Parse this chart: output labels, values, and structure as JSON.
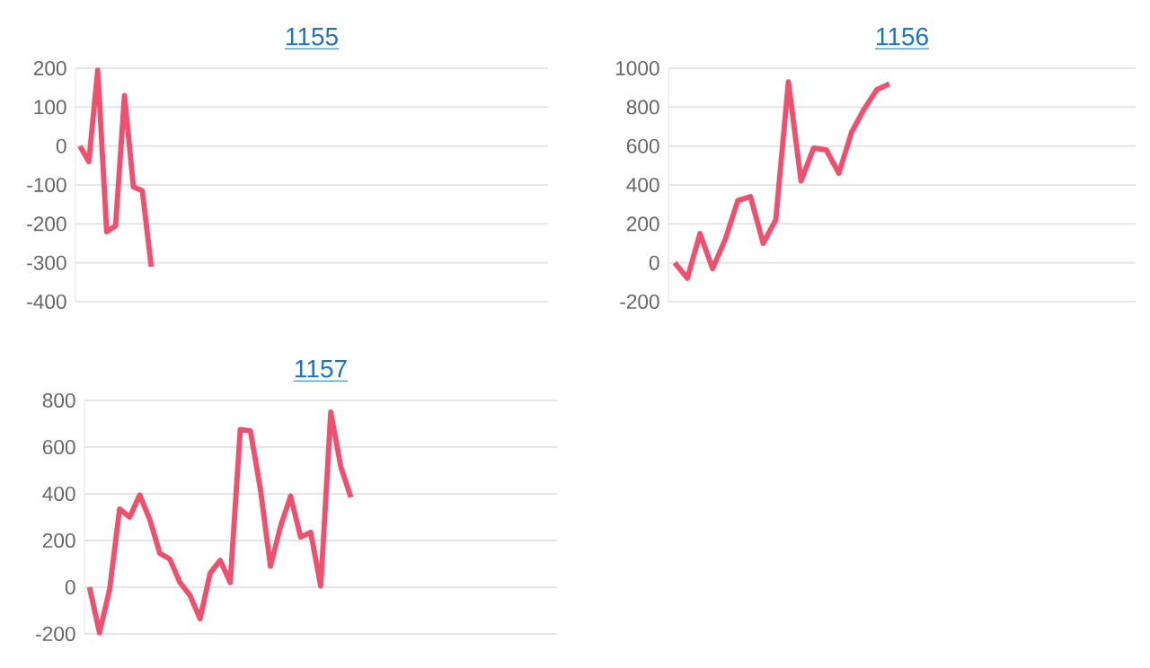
{
  "chart_data": [
    {
      "type": "line",
      "title": "1155",
      "color": "#f0506e",
      "grid": "y",
      "tick_labels": "y",
      "ylim": [
        -400,
        200
      ],
      "yticks": [
        -400,
        -300,
        -200,
        -100,
        0,
        100,
        200
      ],
      "categories": [
        null,
        null,
        null,
        null,
        null,
        null,
        null,
        null,
        null,
        null,
        null,
        null,
        null,
        null,
        null,
        null,
        null,
        null,
        null,
        null,
        null,
        null,
        null,
        null,
        null,
        null,
        null,
        null,
        null,
        null,
        null,
        null,
        null,
        null,
        null,
        null,
        null,
        null,
        null,
        null,
        null,
        null,
        null,
        null,
        null,
        null,
        null,
        null,
        null,
        null,
        null,
        null,
        null
      ],
      "values": [
        0,
        -40,
        195,
        -220,
        -205,
        130,
        -105,
        -115,
        -310,
        null,
        null,
        null,
        null,
        null,
        null,
        null,
        null,
        null,
        null,
        null,
        null,
        null,
        null,
        null,
        null,
        null,
        null,
        null,
        null,
        null,
        null,
        null,
        null,
        null,
        null,
        null,
        null,
        null,
        null,
        null,
        null,
        null,
        null,
        null,
        null,
        null,
        null,
        null,
        null,
        null,
        null,
        null,
        null
      ]
    },
    {
      "type": "line",
      "title": "1156",
      "color": "#f0506e",
      "grid": "y",
      "tick_labels": "y",
      "ylim": [
        -200,
        1000
      ],
      "yticks": [
        -200,
        0,
        200,
        400,
        600,
        800,
        1000
      ],
      "categories": [
        null,
        null,
        null,
        null,
        null,
        null,
        null,
        null,
        null,
        null,
        null,
        null,
        null,
        null,
        null,
        null,
        null,
        null,
        null,
        null,
        null,
        null,
        null,
        null,
        null,
        null,
        null,
        null,
        null,
        null,
        null,
        null,
        null,
        null,
        null,
        null,
        null
      ],
      "values": [
        0,
        -80,
        150,
        -30,
        120,
        320,
        340,
        100,
        220,
        930,
        420,
        590,
        580,
        460,
        670,
        790,
        890,
        920,
        null,
        null,
        null,
        null,
        null,
        null,
        null,
        null,
        null,
        null,
        null,
        null,
        null,
        null,
        null,
        null,
        null,
        null,
        null
      ]
    },
    {
      "type": "line",
      "title": "1157",
      "color": "#f0506e",
      "grid": "y",
      "tick_labels": "y",
      "ylim": [
        -200,
        800
      ],
      "yticks": [
        -200,
        0,
        200,
        400,
        600,
        800
      ],
      "categories": [
        null,
        null,
        null,
        null,
        null,
        null,
        null,
        null,
        null,
        null,
        null,
        null,
        null,
        null,
        null,
        null,
        null,
        null,
        null,
        null,
        null,
        null,
        null,
        null,
        null,
        null,
        null,
        null,
        null,
        null,
        null,
        null,
        null,
        null,
        null,
        null,
        null,
        null,
        null,
        null,
        null,
        null,
        null,
        null,
        null,
        null,
        null
      ],
      "values": [
        0,
        -195,
        -10,
        335,
        300,
        395,
        290,
        145,
        120,
        20,
        -35,
        -135,
        60,
        115,
        20,
        675,
        670,
        420,
        90,
        260,
        390,
        215,
        235,
        5,
        750,
        515,
        385,
        null,
        null,
        null,
        null,
        null,
        null,
        null,
        null,
        null,
        null,
        null,
        null,
        null,
        null,
        null,
        null,
        null,
        null,
        null,
        null
      ]
    }
  ]
}
